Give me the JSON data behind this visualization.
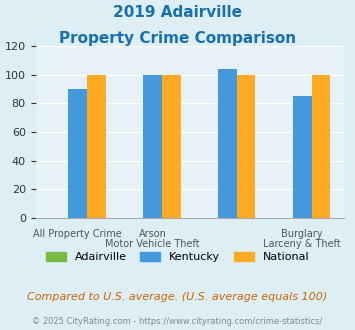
{
  "title_line1": "2019 Adairville",
  "title_line2": "Property Crime Comparison",
  "title_color": "#1a6faf",
  "series": [
    {
      "name": "Adairville",
      "color": "#77bb44",
      "values": [
        0,
        0,
        0,
        0
      ]
    },
    {
      "name": "Kentucky",
      "color": "#4499dd",
      "values": [
        90,
        100,
        104,
        85
      ]
    },
    {
      "name": "National",
      "color": "#ffaa22",
      "values": [
        100,
        100,
        100,
        100
      ]
    }
  ],
  "top_labels": [
    "",
    "Arson",
    "",
    "Burglary"
  ],
  "bottom_labels": [
    "All Property Crime",
    "Motor Vehicle Theft",
    "",
    "Larceny & Theft"
  ],
  "ylim": [
    0,
    120
  ],
  "yticks": [
    0,
    20,
    40,
    60,
    80,
    100,
    120
  ],
  "background_color": "#ddeef5",
  "plot_bg_color": "#e6f2f7",
  "grid_color": "#ffffff",
  "footnote": "Compared to U.S. average. (U.S. average equals 100)",
  "footnote_color": "#cc6600",
  "copyright": "© 2025 CityRating.com - https://www.cityrating.com/crime-statistics/",
  "copyright_color": "#888888",
  "bar_width": 0.25
}
